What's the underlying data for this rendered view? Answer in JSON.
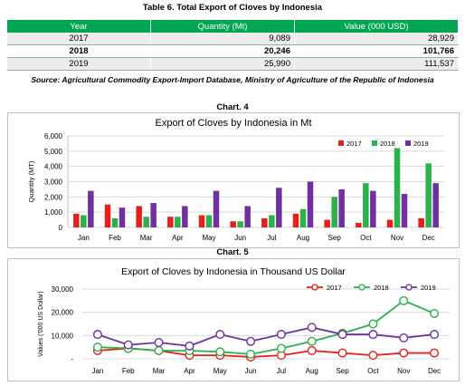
{
  "table": {
    "title": "Table 6. Total Export of Cloves by Indonesia",
    "headers": [
      "Year",
      "Quantity (Mt)",
      "Value (000 USD)"
    ],
    "rows": [
      {
        "year": "2017",
        "quantity": "9,089",
        "value": "28,929"
      },
      {
        "year": "2018",
        "quantity": "20,246",
        "value": "101,766"
      },
      {
        "year": "2019",
        "quantity": "25,990",
        "value": "111,537"
      }
    ],
    "source": "Source: Agricultural Commodity Export-Import Database, Ministry of Agriculture of the Republic of Indonesia"
  },
  "chart4_caption": "Chart. 4",
  "chart5_caption": "Chart. 5",
  "colors": {
    "y2017": "#e3201b",
    "y2018": "#2bb24c",
    "y2019": "#7030a0",
    "header_green": "#00a651"
  },
  "chart_data": [
    {
      "type": "bar",
      "title": "Export of Cloves by Indonesia in Mt",
      "xlabel": "",
      "ylabel": "Quantity (MT)",
      "ylim": [
        0,
        6000
      ],
      "yticks": [
        "0",
        "1,000",
        "2,000",
        "3,000",
        "4,000",
        "5,000",
        "6,000"
      ],
      "categories": [
        "Jan",
        "Feb",
        "Mar",
        "Apr",
        "May",
        "Jun",
        "Jul",
        "Aug",
        "Sep",
        "Oct",
        "Nov",
        "Dec"
      ],
      "series": [
        {
          "name": "2017",
          "values": [
            900,
            1500,
            1400,
            700,
            800,
            400,
            600,
            900,
            500,
            300,
            500,
            600
          ]
        },
        {
          "name": "2018",
          "values": [
            800,
            600,
            700,
            700,
            800,
            400,
            800,
            1200,
            2000,
            2900,
            5200,
            4200
          ]
        },
        {
          "name": "2019",
          "values": [
            2400,
            1300,
            1600,
            1400,
            2400,
            1400,
            2600,
            3000,
            2500,
            2400,
            2200,
            2900
          ]
        }
      ],
      "legend": "top-right",
      "grid": true
    },
    {
      "type": "line",
      "title": "Export of Cloves by Indonesia in Thousand US Dollar",
      "xlabel": "",
      "ylabel": "Values ('000 US Dollar)",
      "ylim": [
        0,
        30000
      ],
      "yticks": [
        "-",
        "10,000",
        "20,000",
        "30,000"
      ],
      "categories": [
        "Jan",
        "Feb",
        "Mar",
        "Apr",
        "May",
        "Jun",
        "Jul",
        "Aug",
        "Sep",
        "Oct",
        "Nov",
        "Dec"
      ],
      "series": [
        {
          "name": "2017",
          "values": [
            3500,
            4500,
            3500,
            1500,
            1500,
            800,
            1500,
            3500,
            2500,
            1500,
            2500,
            2500
          ]
        },
        {
          "name": "2018",
          "values": [
            5000,
            4500,
            3500,
            3500,
            3000,
            2000,
            4500,
            7500,
            11000,
            15000,
            25000,
            19500
          ]
        },
        {
          "name": "2019",
          "values": [
            10500,
            6000,
            7000,
            5500,
            10500,
            7500,
            10500,
            13500,
            10500,
            10500,
            9000,
            10500
          ]
        }
      ],
      "legend": "top-right",
      "grid": true
    }
  ]
}
